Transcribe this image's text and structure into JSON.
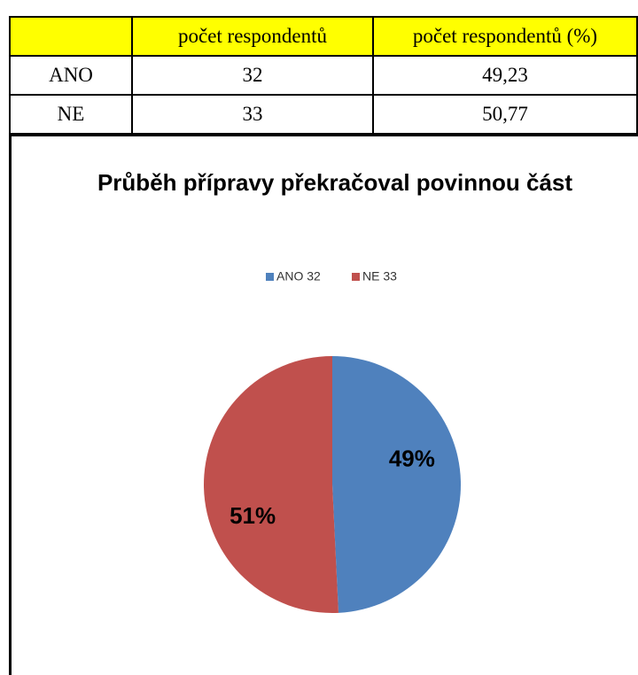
{
  "table": {
    "header": [
      "počet respondentů",
      "počet respondentů (%)"
    ],
    "rows": [
      [
        "ANO",
        "32",
        "49,23"
      ],
      [
        "NE",
        "33",
        "50,77"
      ]
    ]
  },
  "chart_data": {
    "type": "pie",
    "title": "Průběh přípravy překračoval povinnou část",
    "categories": [
      "ANO 32",
      "NE 33"
    ],
    "values": [
      49.23,
      50.77
    ],
    "value_labels": [
      "49%",
      "51%"
    ],
    "colors": [
      "#4f81bd",
      "#c0504d"
    ],
    "legend": "top"
  }
}
